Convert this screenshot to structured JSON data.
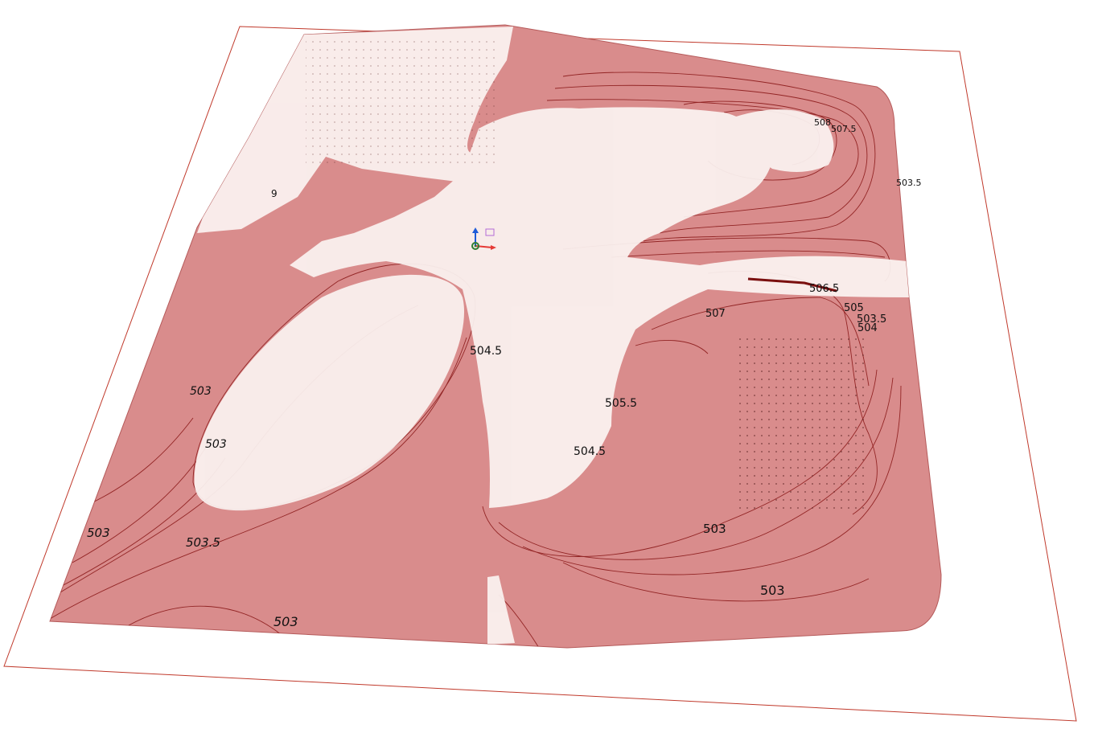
{
  "viewport": {
    "background": "#ffffff",
    "frame_color": "#c0392b",
    "terrain_fill": "#d98c8c",
    "contour_color": "#8b1a1a",
    "foliage_color": "#fbf3f1"
  },
  "contour_labels": [
    {
      "id": "label-508",
      "text": "508"
    },
    {
      "id": "label-507-5",
      "text": "507.5"
    },
    {
      "id": "label-503-5-right",
      "text": "503.5"
    },
    {
      "id": "label-506-5",
      "text": "506.5"
    },
    {
      "id": "label-505",
      "text": "505"
    },
    {
      "id": "label-503-5-east",
      "text": "503.5"
    },
    {
      "id": "label-504",
      "text": "504"
    },
    {
      "id": "label-507",
      "text": "507"
    },
    {
      "id": "label-504-5",
      "text": "504.5"
    },
    {
      "id": "label-505-5",
      "text": "505.5"
    },
    {
      "id": "label-504-5-south",
      "text": "504.5"
    },
    {
      "id": "label-503-center",
      "text": "503"
    },
    {
      "id": "label-503-southeast",
      "text": "503"
    },
    {
      "id": "label-503-west",
      "text": "503"
    },
    {
      "id": "label-503-west2",
      "text": "503"
    },
    {
      "id": "label-503-sw",
      "text": "503"
    },
    {
      "id": "label-503-5-sw",
      "text": "503.5"
    },
    {
      "id": "label-503-south",
      "text": "503"
    },
    {
      "id": "label-nw",
      "text": "9"
    }
  ],
  "gizmo": {
    "x_axis_color": "#e53935",
    "y_axis_color": "#2e7d32",
    "z_axis_color": "#1e5bd8"
  }
}
